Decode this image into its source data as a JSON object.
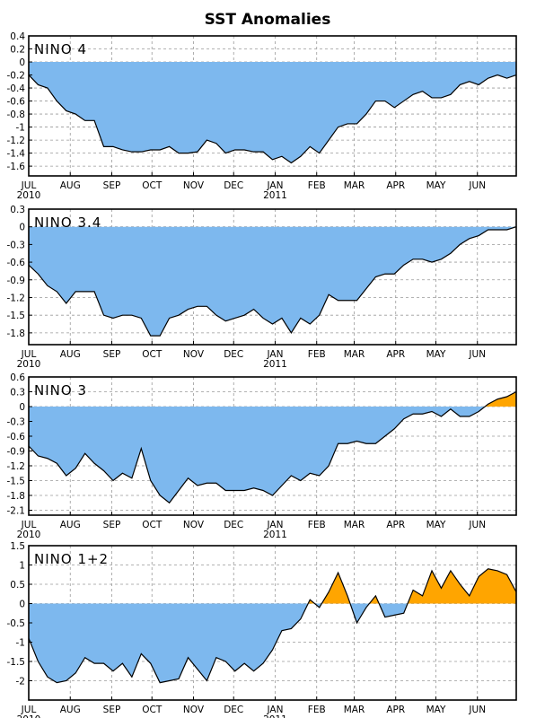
{
  "title": "SST Anomalies",
  "colors": {
    "negative": "#7db8ee",
    "positive": "#ffa500",
    "line": "#000000"
  },
  "x_axis": {
    "months": [
      "JUL",
      "AUG",
      "SEP",
      "OCT",
      "NOV",
      "DEC",
      "JAN",
      "FEB",
      "MAR",
      "APR",
      "MAY",
      "JUN"
    ],
    "year_labels": [
      {
        "month": "JUL",
        "year": "2010"
      },
      {
        "month": "JAN",
        "year": "2011"
      }
    ]
  },
  "chart_data": [
    {
      "type": "area",
      "label": "NINO 4",
      "ylim": [
        -1.75,
        0.4
      ],
      "yticks": [
        "0.4",
        "0.2",
        "0",
        "-0.2",
        "-0.4",
        "-0.6",
        "-0.8",
        "-1",
        "-1.2",
        "-1.4",
        "-1.6"
      ],
      "x": [
        "2010-07-01",
        "2010-07-08",
        "2010-07-15",
        "2010-07-22",
        "2010-07-29",
        "2010-08-05",
        "2010-08-12",
        "2010-08-19",
        "2010-08-26",
        "2010-09-02",
        "2010-09-09",
        "2010-09-16",
        "2010-09-23",
        "2010-09-30",
        "2010-10-07",
        "2010-10-14",
        "2010-10-21",
        "2010-10-28",
        "2010-11-04",
        "2010-11-11",
        "2010-11-18",
        "2010-11-25",
        "2010-12-02",
        "2010-12-09",
        "2010-12-16",
        "2010-12-23",
        "2010-12-30",
        "2011-01-06",
        "2011-01-13",
        "2011-01-20",
        "2011-01-27",
        "2011-02-03",
        "2011-02-10",
        "2011-02-17",
        "2011-02-24",
        "2011-03-03",
        "2011-03-10",
        "2011-03-17",
        "2011-03-24",
        "2011-03-31",
        "2011-04-07",
        "2011-04-14",
        "2011-04-21",
        "2011-04-28",
        "2011-05-05",
        "2011-05-12",
        "2011-05-19",
        "2011-05-26",
        "2011-06-02",
        "2011-06-09",
        "2011-06-16",
        "2011-06-23",
        "2011-06-30"
      ],
      "values": [
        -0.2,
        -0.35,
        -0.4,
        -0.6,
        -0.75,
        -0.8,
        -0.9,
        -0.9,
        -1.3,
        -1.3,
        -1.35,
        -1.38,
        -1.38,
        -1.35,
        -1.35,
        -1.3,
        -1.4,
        -1.4,
        -1.38,
        -1.2,
        -1.25,
        -1.4,
        -1.35,
        -1.35,
        -1.38,
        -1.38,
        -1.5,
        -1.45,
        -1.55,
        -1.45,
        -1.3,
        -1.4,
        -1.2,
        -1.0,
        -0.95,
        -0.95,
        -0.8,
        -0.6,
        -0.6,
        -0.7,
        -0.6,
        -0.5,
        -0.45,
        -0.55,
        -0.55,
        -0.5,
        -0.35,
        -0.3,
        -0.35,
        -0.25,
        -0.2,
        -0.25,
        -0.2
      ]
    },
    {
      "type": "area",
      "label": "NINO 3.4",
      "ylim": [
        -2.0,
        0.3
      ],
      "yticks": [
        "0.3",
        "0",
        "-0.3",
        "-0.6",
        "-0.9",
        "-1.2",
        "-1.5",
        "-1.8"
      ],
      "x": [
        "2010-07-01",
        "2010-07-08",
        "2010-07-15",
        "2010-07-22",
        "2010-07-29",
        "2010-08-05",
        "2010-08-12",
        "2010-08-19",
        "2010-08-26",
        "2010-09-02",
        "2010-09-09",
        "2010-09-16",
        "2010-09-23",
        "2010-09-30",
        "2010-10-07",
        "2010-10-14",
        "2010-10-21",
        "2010-10-28",
        "2010-11-04",
        "2010-11-11",
        "2010-11-18",
        "2010-11-25",
        "2010-12-02",
        "2010-12-09",
        "2010-12-16",
        "2010-12-23",
        "2010-12-30",
        "2011-01-06",
        "2011-01-13",
        "2011-01-20",
        "2011-01-27",
        "2011-02-03",
        "2011-02-10",
        "2011-02-17",
        "2011-02-24",
        "2011-03-03",
        "2011-03-10",
        "2011-03-17",
        "2011-03-24",
        "2011-03-31",
        "2011-04-07",
        "2011-04-14",
        "2011-04-21",
        "2011-04-28",
        "2011-05-05",
        "2011-05-12",
        "2011-05-19",
        "2011-05-26",
        "2011-06-02",
        "2011-06-09",
        "2011-06-16",
        "2011-06-23",
        "2011-06-30"
      ],
      "values": [
        -0.65,
        -0.8,
        -1.0,
        -1.1,
        -1.3,
        -1.1,
        -1.1,
        -1.1,
        -1.5,
        -1.55,
        -1.5,
        -1.5,
        -1.55,
        -1.85,
        -1.85,
        -1.55,
        -1.5,
        -1.4,
        -1.35,
        -1.35,
        -1.5,
        -1.6,
        -1.55,
        -1.5,
        -1.4,
        -1.55,
        -1.65,
        -1.55,
        -1.8,
        -1.55,
        -1.65,
        -1.5,
        -1.15,
        -1.25,
        -1.25,
        -1.25,
        -1.05,
        -0.85,
        -0.8,
        -0.8,
        -0.65,
        -0.55,
        -0.55,
        -0.6,
        -0.55,
        -0.45,
        -0.3,
        -0.2,
        -0.15,
        -0.05,
        -0.05,
        -0.05,
        0.0
      ]
    },
    {
      "type": "area",
      "label": "NINO 3",
      "ylim": [
        -2.2,
        0.6
      ],
      "yticks": [
        "0.6",
        "0.3",
        "0",
        "-0.3",
        "-0.6",
        "-0.9",
        "-1.2",
        "-1.5",
        "-1.8",
        "-2.1"
      ],
      "x": [
        "2010-07-01",
        "2010-07-08",
        "2010-07-15",
        "2010-07-22",
        "2010-07-29",
        "2010-08-05",
        "2010-08-12",
        "2010-08-19",
        "2010-08-26",
        "2010-09-02",
        "2010-09-09",
        "2010-09-16",
        "2010-09-23",
        "2010-09-30",
        "2010-10-07",
        "2010-10-14",
        "2010-10-21",
        "2010-10-28",
        "2010-11-04",
        "2010-11-11",
        "2010-11-18",
        "2010-11-25",
        "2010-12-02",
        "2010-12-09",
        "2010-12-16",
        "2010-12-23",
        "2010-12-30",
        "2011-01-06",
        "2011-01-13",
        "2011-01-20",
        "2011-01-27",
        "2011-02-03",
        "2011-02-10",
        "2011-02-17",
        "2011-02-24",
        "2011-03-03",
        "2011-03-10",
        "2011-03-17",
        "2011-03-24",
        "2011-03-31",
        "2011-04-07",
        "2011-04-14",
        "2011-04-21",
        "2011-04-28",
        "2011-05-05",
        "2011-05-12",
        "2011-05-19",
        "2011-05-26",
        "2011-06-02",
        "2011-06-09",
        "2011-06-16",
        "2011-06-23",
        "2011-06-30"
      ],
      "values": [
        -0.8,
        -1.0,
        -1.05,
        -1.15,
        -1.4,
        -1.25,
        -0.95,
        -1.15,
        -1.3,
        -1.5,
        -1.35,
        -1.45,
        -0.85,
        -1.5,
        -1.8,
        -1.95,
        -1.7,
        -1.45,
        -1.6,
        -1.55,
        -1.55,
        -1.7,
        -1.7,
        -1.7,
        -1.65,
        -1.7,
        -1.8,
        -1.6,
        -1.4,
        -1.5,
        -1.35,
        -1.4,
        -1.2,
        -0.75,
        -0.75,
        -0.7,
        -0.75,
        -0.75,
        -0.6,
        -0.45,
        -0.25,
        -0.15,
        -0.15,
        -0.1,
        -0.2,
        -0.05,
        -0.2,
        -0.2,
        -0.1,
        0.05,
        0.15,
        0.2,
        0.3
      ]
    },
    {
      "type": "area",
      "label": "NINO 1+2",
      "ylim": [
        -2.5,
        1.5
      ],
      "yticks": [
        "1.5",
        "1",
        "0.5",
        "0",
        "-0.5",
        "-1",
        "-1.5",
        "-2"
      ],
      "x": [
        "2010-07-01",
        "2010-07-08",
        "2010-07-15",
        "2010-07-22",
        "2010-07-29",
        "2010-08-05",
        "2010-08-12",
        "2010-08-19",
        "2010-08-26",
        "2010-09-02",
        "2010-09-09",
        "2010-09-16",
        "2010-09-23",
        "2010-09-30",
        "2010-10-07",
        "2010-10-14",
        "2010-10-21",
        "2010-10-28",
        "2010-11-04",
        "2010-11-11",
        "2010-11-18",
        "2010-11-25",
        "2010-12-02",
        "2010-12-09",
        "2010-12-16",
        "2010-12-23",
        "2010-12-30",
        "2011-01-06",
        "2011-01-13",
        "2011-01-20",
        "2011-01-27",
        "2011-02-03",
        "2011-02-10",
        "2011-02-17",
        "2011-02-24",
        "2011-03-03",
        "2011-03-10",
        "2011-03-17",
        "2011-03-24",
        "2011-03-31",
        "2011-04-07",
        "2011-04-14",
        "2011-04-21",
        "2011-04-28",
        "2011-05-05",
        "2011-05-12",
        "2011-05-19",
        "2011-05-26",
        "2011-06-02",
        "2011-06-09",
        "2011-06-16",
        "2011-06-23",
        "2011-06-30"
      ],
      "values": [
        -0.9,
        -1.5,
        -1.9,
        -2.05,
        -2.0,
        -1.8,
        -1.4,
        -1.55,
        -1.55,
        -1.75,
        -1.55,
        -1.9,
        -1.3,
        -1.55,
        -2.05,
        -2.0,
        -1.95,
        -1.4,
        -1.7,
        -2.0,
        -1.4,
        -1.5,
        -1.75,
        -1.55,
        -1.75,
        -1.55,
        -1.2,
        -0.7,
        -0.65,
        -0.4,
        0.1,
        -0.1,
        0.3,
        0.8,
        0.2,
        -0.5,
        -0.1,
        0.2,
        -0.35,
        -0.3,
        -0.25,
        0.35,
        0.2,
        0.85,
        0.4,
        0.85,
        0.5,
        0.2,
        0.7,
        0.9,
        0.85,
        0.75,
        0.3
      ]
    }
  ]
}
